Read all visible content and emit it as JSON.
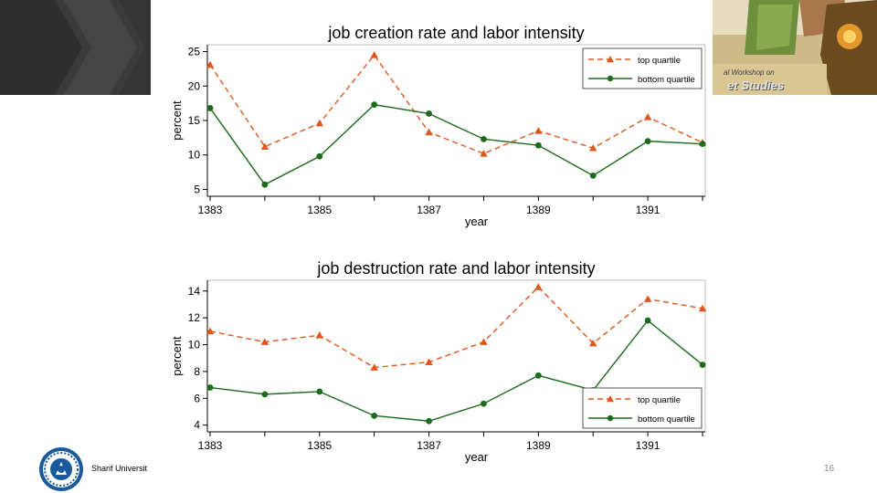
{
  "footer": {
    "university": "Sharif Universit",
    "page_number": "16"
  },
  "banner": {
    "line1": "al Workshop on",
    "line2": "et Studies"
  },
  "chart_data": [
    {
      "type": "line",
      "title": "job creation rate and labor intensity",
      "xlabel": "year",
      "ylabel": "percent",
      "x": [
        1383,
        1384,
        1385,
        1386,
        1387,
        1388,
        1389,
        1390,
        1391,
        1392
      ],
      "xticks": [
        "1383",
        "1385",
        "1387",
        "1389",
        "1391"
      ],
      "yticks": [
        "5",
        "10",
        "15",
        "20",
        "25"
      ],
      "ylim": [
        4,
        26
      ],
      "legend_position": "top-right",
      "series": [
        {
          "name": "top quartile",
          "color": "#e0561b",
          "marker": "triangle",
          "dash": true,
          "values": [
            23.1,
            11.2,
            14.6,
            24.5,
            13.3,
            10.2,
            13.5,
            11.0,
            15.5,
            11.8
          ]
        },
        {
          "name": "bottom quartile",
          "color": "#1b6b1b",
          "marker": "circle",
          "dash": false,
          "values": [
            16.8,
            5.7,
            9.8,
            17.3,
            16.0,
            12.3,
            11.4,
            7.0,
            12.0,
            11.6
          ]
        }
      ]
    },
    {
      "type": "line",
      "title": "job destruction rate and labor intensity",
      "xlabel": "year",
      "ylabel": "percent",
      "x": [
        1383,
        1384,
        1385,
        1386,
        1387,
        1388,
        1389,
        1390,
        1391,
        1392
      ],
      "xticks": [
        "1383",
        "1385",
        "1387",
        "1389",
        "1391"
      ],
      "yticks": [
        "4",
        "6",
        "8",
        "10",
        "12",
        "14"
      ],
      "ylim": [
        3.5,
        14.8
      ],
      "legend_position": "bottom-right",
      "series": [
        {
          "name": "top quartile",
          "color": "#e0561b",
          "marker": "triangle",
          "dash": true,
          "values": [
            11.0,
            10.2,
            10.7,
            8.3,
            8.7,
            10.2,
            14.3,
            10.1,
            13.4,
            12.7
          ]
        },
        {
          "name": "bottom quartile",
          "color": "#1b6b1b",
          "marker": "circle",
          "dash": false,
          "values": [
            6.8,
            6.3,
            6.5,
            4.7,
            4.3,
            5.6,
            7.7,
            6.6,
            11.8,
            8.5
          ]
        }
      ]
    }
  ]
}
